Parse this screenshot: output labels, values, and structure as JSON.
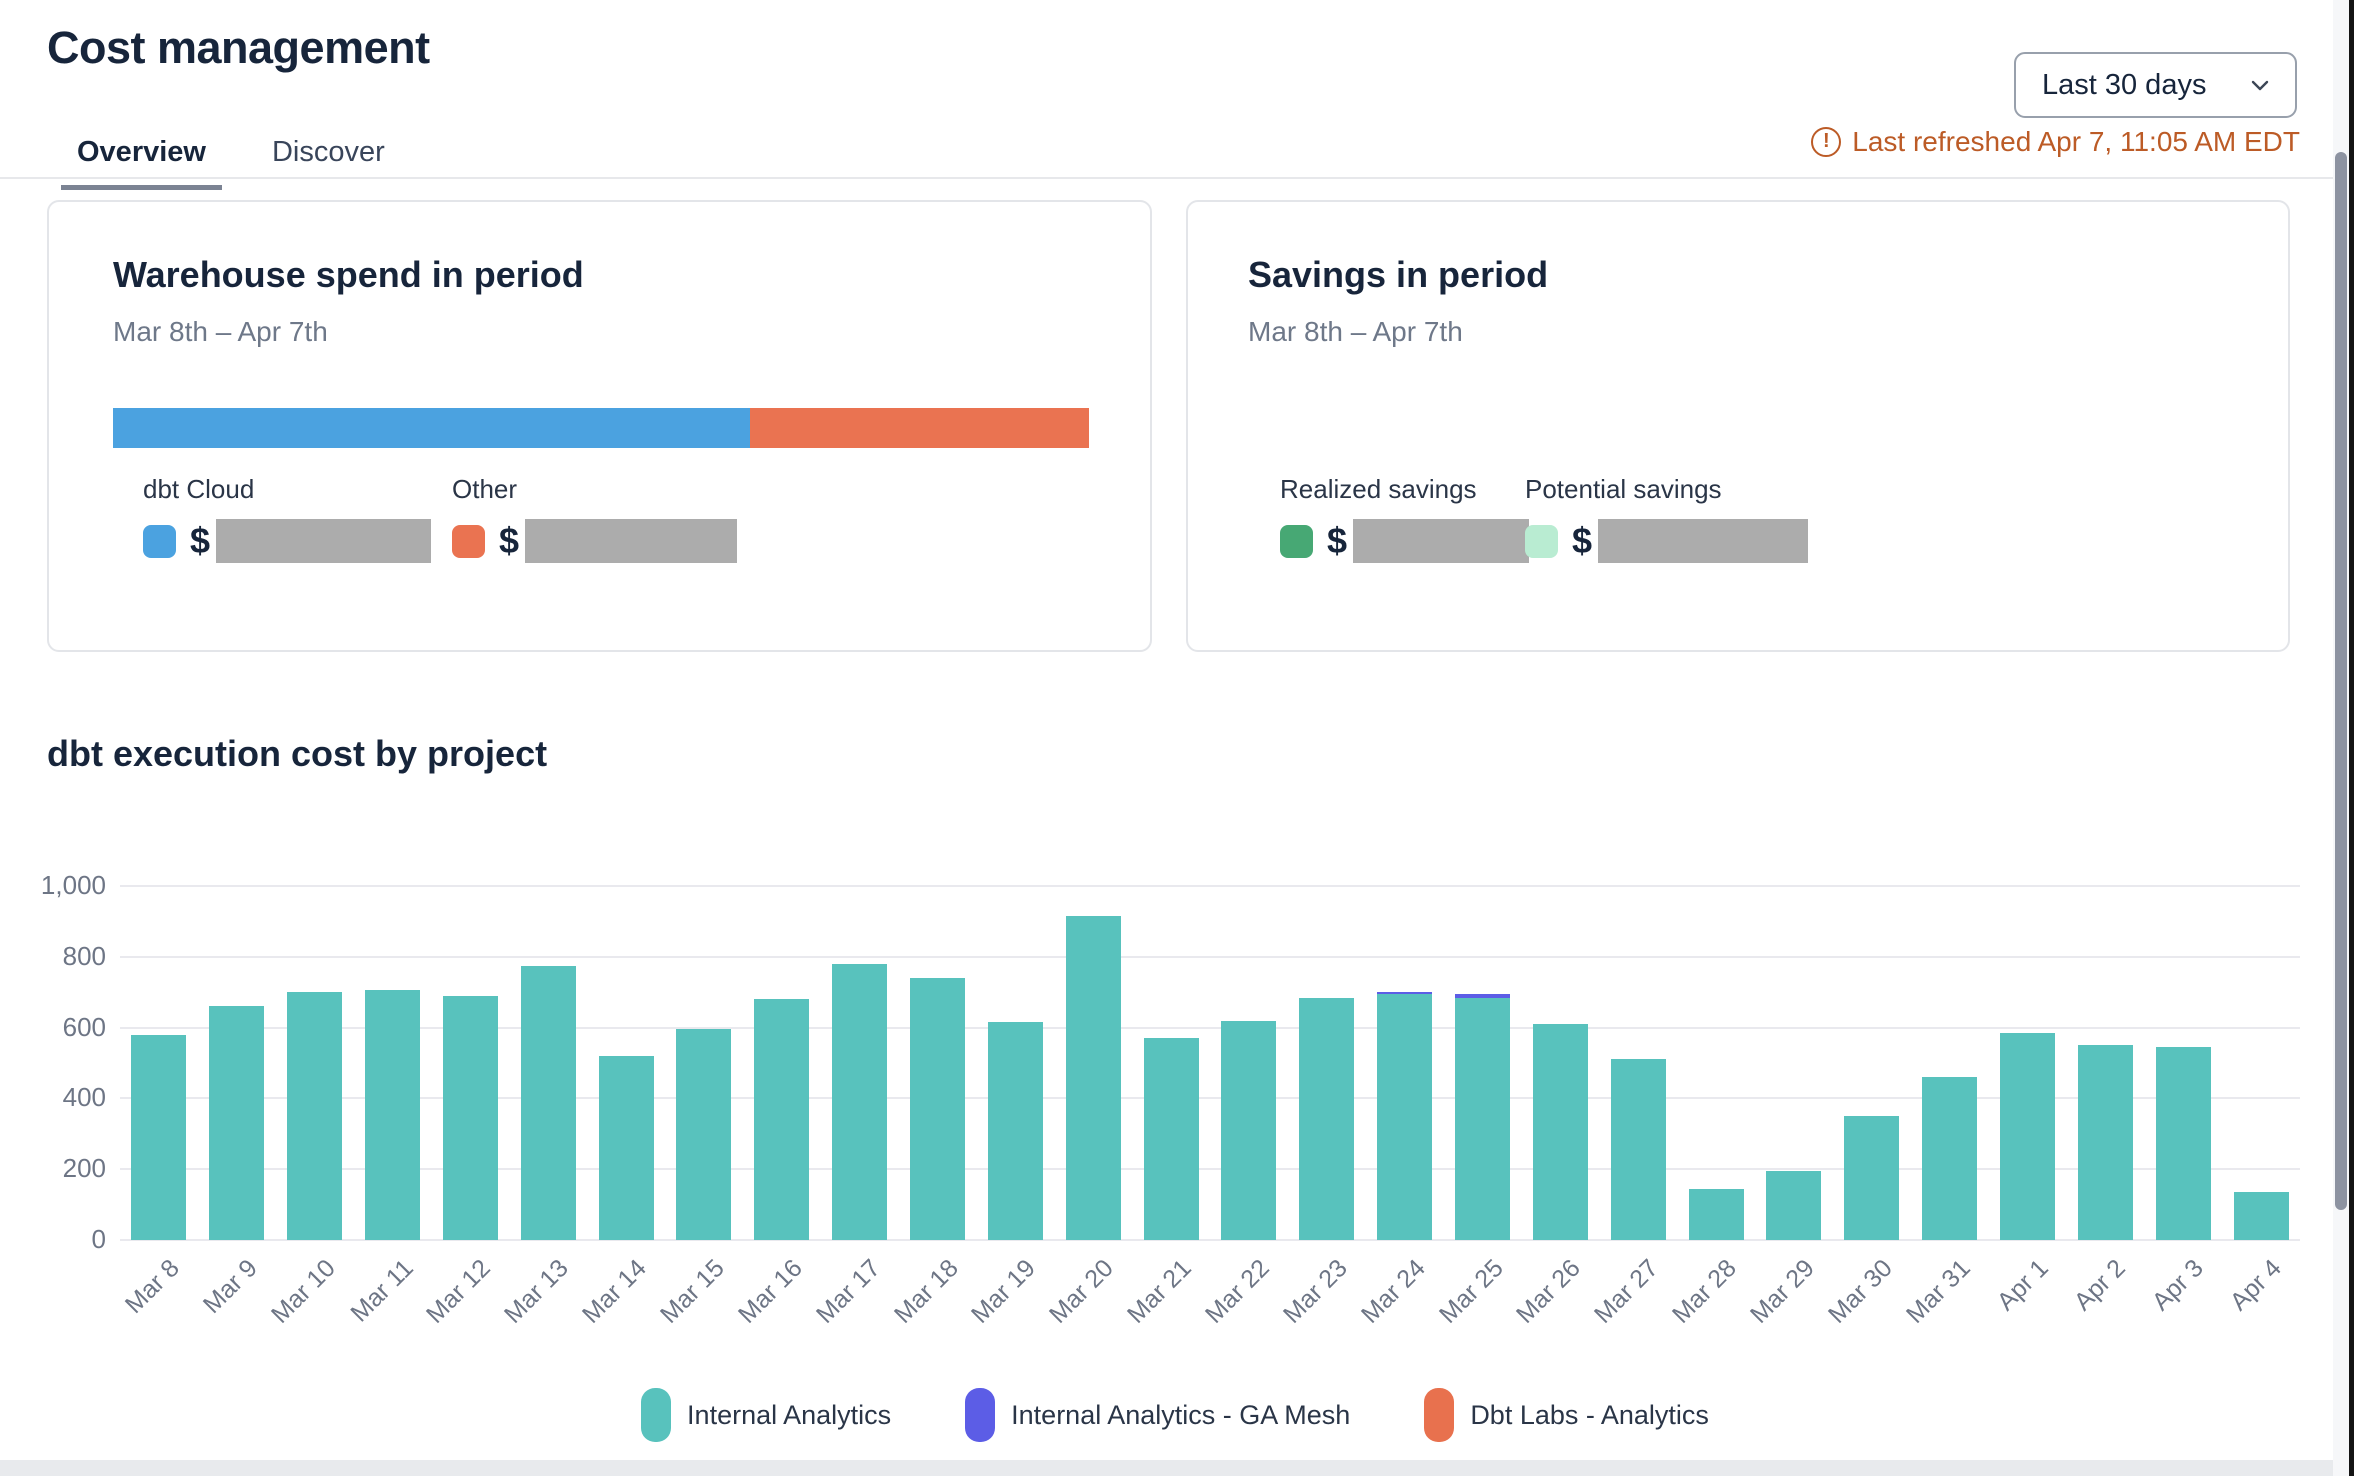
{
  "header": {
    "title": "Cost management",
    "date_range_selector": {
      "value": "Last 30 days"
    },
    "last_refreshed": "Last refreshed Apr 7, 11:05 AM EDT",
    "tabs": [
      {
        "label": "Overview",
        "active": true
      },
      {
        "label": "Discover",
        "active": false
      }
    ]
  },
  "cards": {
    "warehouse": {
      "title": "Warehouse spend in period",
      "subtitle": "Mar 8th – Apr 7th",
      "stacked_bar": {
        "segments": [
          {
            "name": "dbt Cloud",
            "color": "#4ba2e0",
            "fraction": 0.653
          },
          {
            "name": "Other",
            "color": "#ea7351",
            "fraction": 0.347
          }
        ]
      },
      "kpis": [
        {
          "label": "dbt Cloud",
          "swatch_color": "#4ba2e0",
          "currency_symbol": "$",
          "value_redacted": true,
          "redact_width": 215
        },
        {
          "label": "Other",
          "swatch_color": "#ea7351",
          "currency_symbol": "$",
          "value_redacted": true,
          "redact_width": 212
        }
      ]
    },
    "savings": {
      "title": "Savings in period",
      "subtitle": "Mar 8th – Apr 7th",
      "kpis": [
        {
          "label": "Realized savings",
          "swatch_color": "#47a874",
          "currency_symbol": "$",
          "value_redacted": true,
          "redact_width": 176
        },
        {
          "label": "Potential savings",
          "swatch_color": "#b9ecd2",
          "currency_symbol": "$",
          "value_redacted": true,
          "redact_width": 210
        }
      ]
    }
  },
  "chart_section": {
    "title": "dbt execution cost by project"
  },
  "chart_data": {
    "type": "bar",
    "stacked": true,
    "title": "dbt execution cost by project",
    "xlabel": "",
    "ylabel": "",
    "ylim": [
      0,
      1000
    ],
    "grid": true,
    "legend_position": "bottom",
    "yticks": [
      {
        "value": 0,
        "label": "0"
      },
      {
        "value": 200,
        "label": "200"
      },
      {
        "value": 400,
        "label": "400"
      },
      {
        "value": 600,
        "label": "600"
      },
      {
        "value": 800,
        "label": "800"
      },
      {
        "value": 1000,
        "label": "1,000"
      }
    ],
    "categories": [
      "Mar 8",
      "Mar 9",
      "Mar 10",
      "Mar 11",
      "Mar 12",
      "Mar 13",
      "Mar 14",
      "Mar 15",
      "Mar 16",
      "Mar 17",
      "Mar 18",
      "Mar 19",
      "Mar 20",
      "Mar 21",
      "Mar 22",
      "Mar 23",
      "Mar 24",
      "Mar 25",
      "Mar 26",
      "Mar 27",
      "Mar 28",
      "Mar 29",
      "Mar 30",
      "Mar 31",
      "Apr 1",
      "Apr 2",
      "Apr 3",
      "Apr 4"
    ],
    "series": [
      {
        "name": "Internal Analytics",
        "color": "#58c2bd",
        "values": [
          580,
          660,
          700,
          705,
          690,
          775,
          520,
          595,
          680,
          780,
          740,
          615,
          915,
          570,
          620,
          685,
          694,
          685,
          610,
          510,
          145,
          195,
          350,
          460,
          585,
          550,
          545,
          135
        ]
      },
      {
        "name": "Internal Analytics - GA Mesh",
        "color": "#5c5de6",
        "values": [
          0,
          0,
          0,
          0,
          0,
          0,
          0,
          0,
          0,
          0,
          0,
          0,
          0,
          0,
          0,
          0,
          6,
          10,
          0,
          0,
          0,
          0,
          0,
          0,
          0,
          0,
          0,
          0
        ]
      },
      {
        "name": "Dbt Labs - Analytics",
        "color": "#e8714e",
        "values": [
          0,
          0,
          0,
          0,
          0,
          0,
          0,
          0,
          0,
          0,
          0,
          0,
          0,
          0,
          0,
          0,
          0,
          0,
          0,
          0,
          0,
          0,
          0,
          0,
          0,
          0,
          0,
          0
        ]
      }
    ]
  }
}
